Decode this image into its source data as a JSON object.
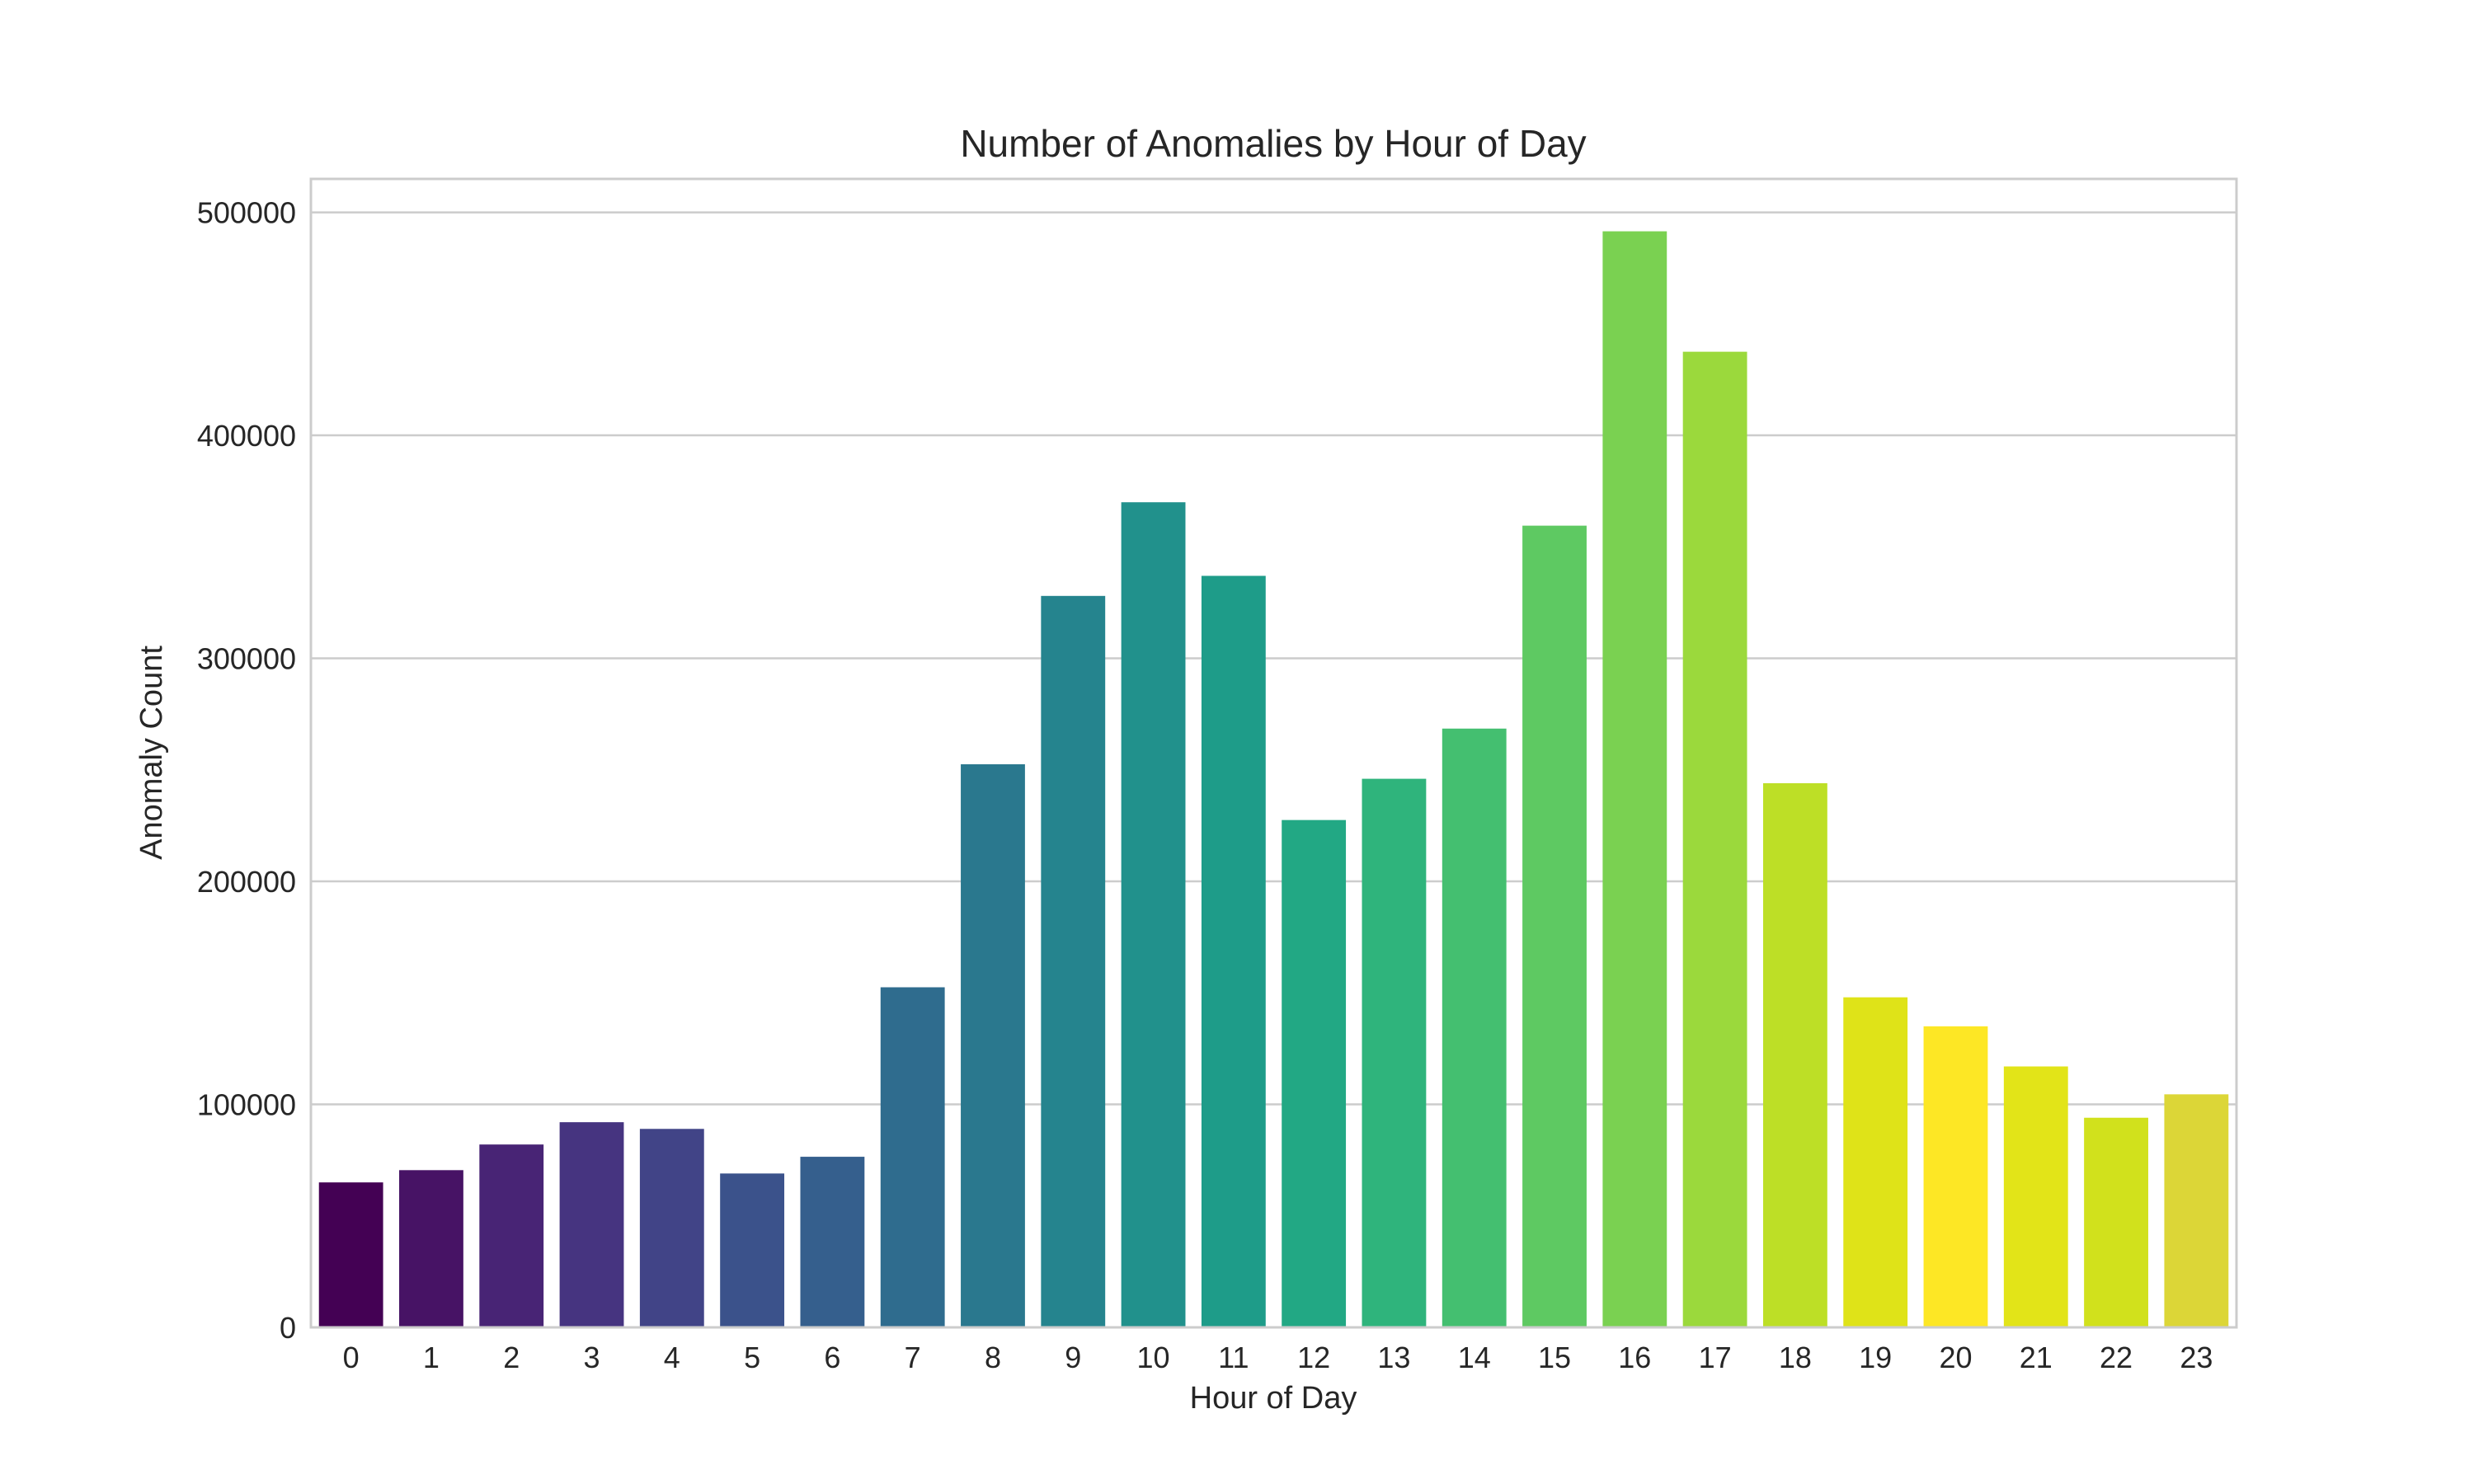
{
  "chart_data": {
    "type": "bar",
    "title": "Number of Anomalies by Hour of Day",
    "xlabel": "Hour of Day",
    "ylabel": "Anomaly Count",
    "categories": [
      "0",
      "1",
      "2",
      "3",
      "4",
      "5",
      "6",
      "7",
      "8",
      "9",
      "10",
      "11",
      "12",
      "13",
      "14",
      "15",
      "16",
      "17",
      "18",
      "19",
      "20",
      "21",
      "22",
      "23"
    ],
    "values": [
      65000,
      70500,
      82000,
      92000,
      89000,
      69000,
      76500,
      152500,
      252500,
      328000,
      370000,
      337000,
      227500,
      246000,
      268500,
      359500,
      491500,
      437500,
      244000,
      148000,
      135000,
      117000,
      94000,
      104500
    ],
    "ylim": [
      0,
      515000
    ],
    "yticks": [
      0,
      100000,
      200000,
      300000,
      400000,
      500000
    ],
    "ytick_labels": [
      "0",
      "100000",
      "200000",
      "300000",
      "400000",
      "500000"
    ],
    "grid": true,
    "grid_axis": "y",
    "palette": "viridis",
    "colors": [
      "#440154",
      "#471365",
      "#482475",
      "#463480",
      "#414487",
      "#3b528b",
      "#355f8d",
      "#2f6c8e",
      "#2a788e",
      "#25848e",
      "#21918c",
      "#1e9c89",
      "#22a884",
      "#2fb47c",
      "#44bf70",
      "#5ec962",
      "#7ad151",
      "#9bd93c",
      "#bddf26",
      "#dfe318",
      "#fde725",
      "#e2e418",
      "#d1e11c",
      "#dcd637"
    ]
  }
}
